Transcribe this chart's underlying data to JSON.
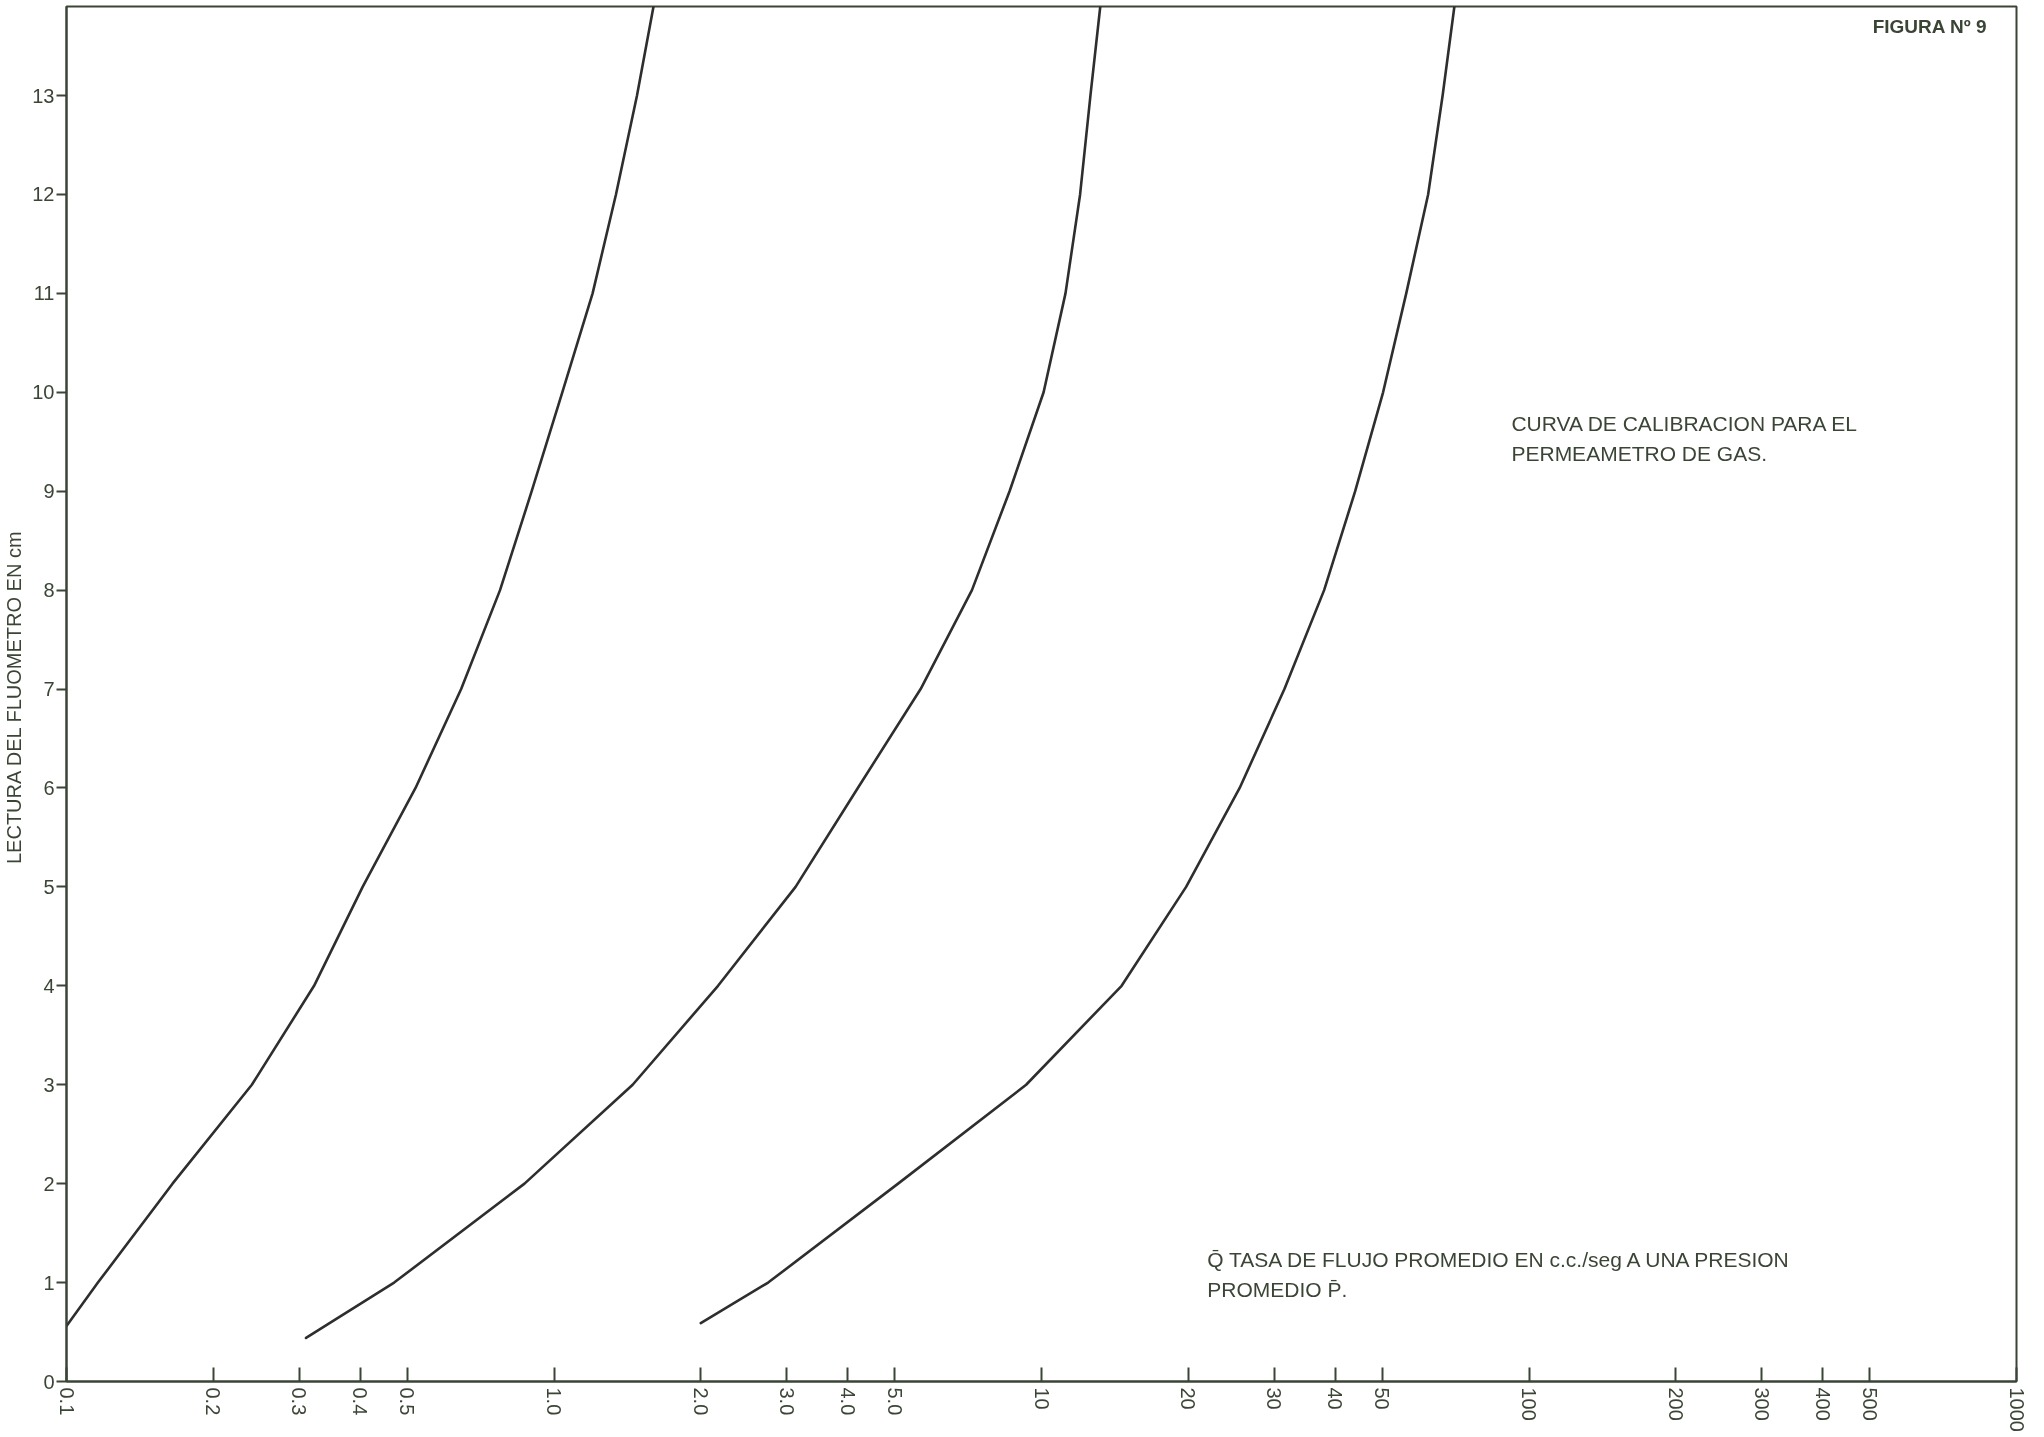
{
  "chart_data": {
    "type": "line",
    "title": "FIGURA Nº 9",
    "xlabel": "Q̄  TASA DE FLUJO PROMEDIO EN c.c./seg A UNA PRESION\nPROMEDIO P̄.",
    "ylabel": "LECTURA  DEL FLUOMETRO EN cm",
    "annotations": [
      "CURVA DE CALIBRACION PARA EL\nPERMEAMETRO DE GAS."
    ],
    "log": "x",
    "xlim": [
      0.1,
      1000
    ],
    "ylim": [
      0,
      13.9
    ],
    "xticks": [
      0.1,
      0.2,
      0.3,
      0.4,
      0.5,
      {
        "value": 1,
        "label": "1.0"
      },
      {
        "value": 2,
        "label": "2.0"
      },
      {
        "value": 3,
        "label": "3.0"
      },
      {
        "value": 4,
        "label": "4.0"
      },
      {
        "value": 5,
        "label": "5.0"
      },
      10,
      20,
      30,
      40,
      50,
      100,
      200,
      300,
      400,
      500,
      1000
    ],
    "yticks": [
      0,
      1,
      2,
      3,
      4,
      5,
      6,
      7,
      8,
      9,
      10,
      11,
      12,
      13
    ],
    "series": [
      {
        "color": "#2e2e2e",
        "x": [
          0.1,
          0.116,
          0.165,
          0.24,
          0.322,
          0.405,
          0.52,
          0.645,
          0.775,
          0.9,
          1.04,
          1.2,
          1.34,
          1.48,
          1.6
        ],
        "values": [
          0.56,
          1,
          2,
          3,
          4,
          5,
          6,
          7,
          8,
          9,
          10,
          11,
          12,
          13,
          13.9
        ]
      },
      {
        "color": "#2e2e2e",
        "x": [
          0.31,
          0.47,
          0.87,
          1.45,
          2.17,
          3.13,
          4.2,
          5.65,
          7.2,
          8.6,
          10.1,
          11.2,
          12.0,
          12.6,
          13.2
        ],
        "values": [
          0.44,
          1,
          2,
          3,
          4,
          5,
          6,
          7,
          8,
          9,
          10,
          11,
          12,
          13,
          13.9
        ]
      },
      {
        "color": "#2e2e2e",
        "x": [
          2.0,
          2.75,
          5.08,
          9.3,
          14.6,
          19.8,
          25.5,
          31.5,
          38,
          44,
          50.2,
          56,
          62.1,
          66.5,
          70.3
        ],
        "values": [
          0.59,
          1,
          2,
          3,
          4,
          5,
          6,
          7,
          8,
          9,
          10,
          11,
          12,
          13,
          13.9
        ]
      }
    ]
  }
}
